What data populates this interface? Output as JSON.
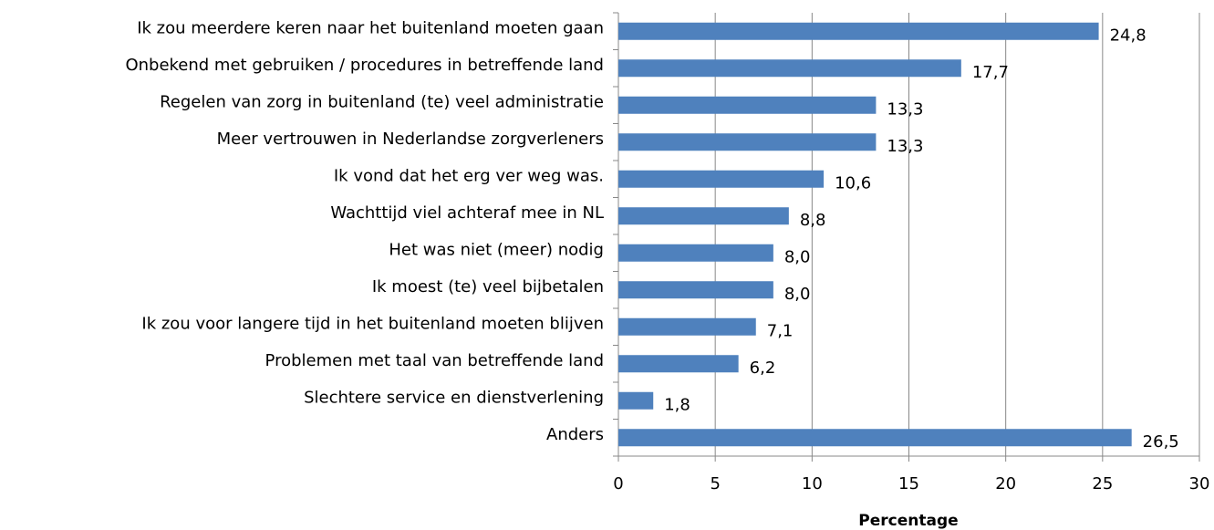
{
  "chart_data": {
    "type": "bar",
    "orientation": "horizontal",
    "categories": [
      "Ik zou meerdere keren naar het buitenland moeten gaan",
      "Onbekend met gebruiken / procedures in betreffende land",
      "Regelen van zorg in buitenland (te) veel administratie",
      "Meer vertrouwen in Nederlandse zorgverleners",
      "Ik vond dat het erg ver weg was.",
      "Wachttijd viel achteraf mee in NL",
      "Het was niet (meer) nodig",
      "Ik moest (te) veel bijbetalen",
      "Ik zou voor langere tijd in het buitenland moeten blijven",
      "Problemen met taal van betreffende land",
      "Slechtere service en dienstverlening",
      "Anders"
    ],
    "values": [
      24.8,
      17.7,
      13.3,
      13.3,
      10.6,
      8.8,
      8.0,
      8.0,
      7.1,
      6.2,
      1.8,
      26.5
    ],
    "value_labels": [
      "24,8",
      "17,7",
      "13,3",
      "13,3",
      "10,6",
      "8,8",
      "8,0",
      "8,0",
      "7,1",
      "6,2",
      "1,8",
      "26,5"
    ],
    "color": "#4f81bd",
    "xlabel": "Percentage",
    "xlim": [
      0,
      30
    ],
    "xticks": [
      0,
      5,
      10,
      15,
      20,
      25,
      30
    ],
    "grid": true
  }
}
